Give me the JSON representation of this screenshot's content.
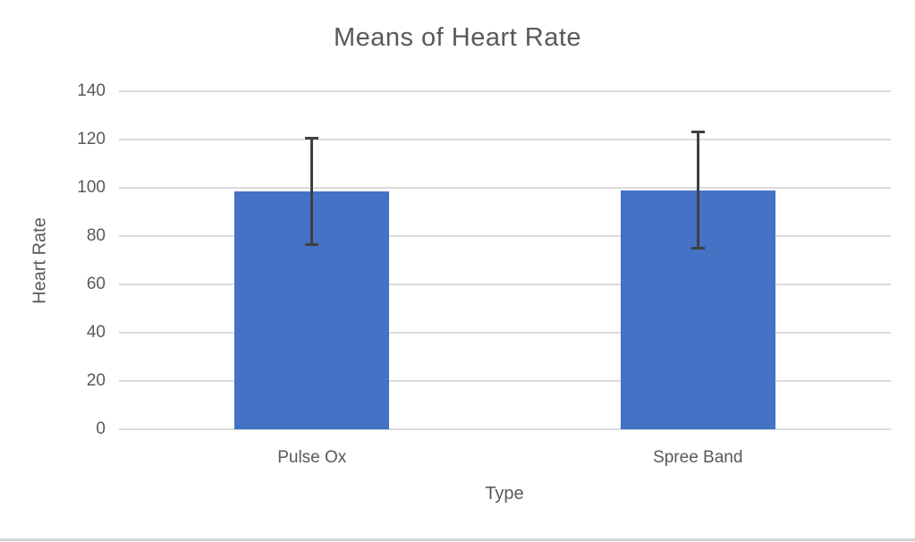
{
  "chart_data": {
    "type": "bar",
    "title": "Means of Heart Rate",
    "xlabel": "Type",
    "ylabel": "Heart Rate",
    "categories": [
      "Pulse Ox",
      "Spree Band"
    ],
    "values": [
      98.5,
      99
    ],
    "error_bars": [
      {
        "low": 76.5,
        "high": 120.5
      },
      {
        "low": 75,
        "high": 123
      }
    ],
    "ylim": [
      0,
      140
    ],
    "yticks": [
      0,
      20,
      40,
      60,
      80,
      100,
      120,
      140
    ],
    "grid": "horizontal",
    "legend": "none",
    "colors": {
      "bar": "#4472C4",
      "error_bar": "#404040",
      "gridline": "#DCDCDC",
      "text": "#595959",
      "bottom_border": "#D2D2D2"
    }
  }
}
